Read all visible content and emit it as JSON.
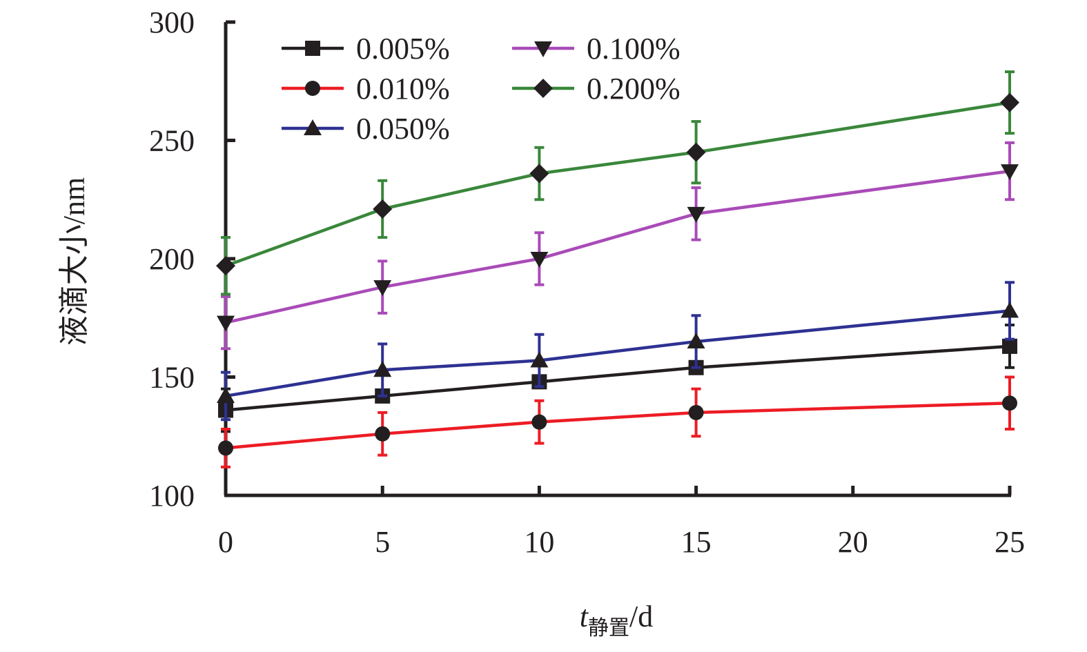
{
  "chart_data": {
    "type": "line",
    "x": [
      0,
      5,
      10,
      15,
      25
    ],
    "xlim": [
      0,
      25
    ],
    "xticks": [
      "0",
      "5",
      "10",
      "15",
      "20",
      "25"
    ],
    "ylim": [
      100,
      300
    ],
    "yticks": [
      "100",
      "150",
      "200",
      "250",
      "300"
    ],
    "xlabel": {
      "var": "t",
      "sub": "静置",
      "unit": "/d"
    },
    "ylabel": "液滴大小/nm",
    "legend_position": "top-left",
    "grid": false,
    "series": [
      {
        "name": "0.005%",
        "color": "#231f20",
        "marker": "square",
        "values": [
          136,
          142,
          148,
          154,
          163
        ],
        "errors": [
          9,
          0,
          0,
          0,
          9
        ]
      },
      {
        "name": "0.010%",
        "color": "#ed1c24",
        "marker": "circle",
        "values": [
          120,
          126,
          131,
          135,
          139
        ],
        "errors": [
          8,
          9,
          9,
          10,
          11
        ]
      },
      {
        "name": "0.050%",
        "color": "#2e3192",
        "marker": "triangle-up",
        "values": [
          142,
          153,
          157,
          165,
          178
        ],
        "errors": [
          10,
          11,
          11,
          11,
          12
        ]
      },
      {
        "name": "0.100%",
        "color": "#a94bb8",
        "marker": "triangle-down",
        "values": [
          173,
          188,
          200,
          219,
          237
        ],
        "errors": [
          11,
          11,
          11,
          11,
          12
        ]
      },
      {
        "name": "0.200%",
        "color": "#3a873b",
        "marker": "diamond",
        "values": [
          197,
          221,
          236,
          245,
          266
        ],
        "errors": [
          12,
          12,
          11,
          13,
          13
        ]
      }
    ]
  }
}
